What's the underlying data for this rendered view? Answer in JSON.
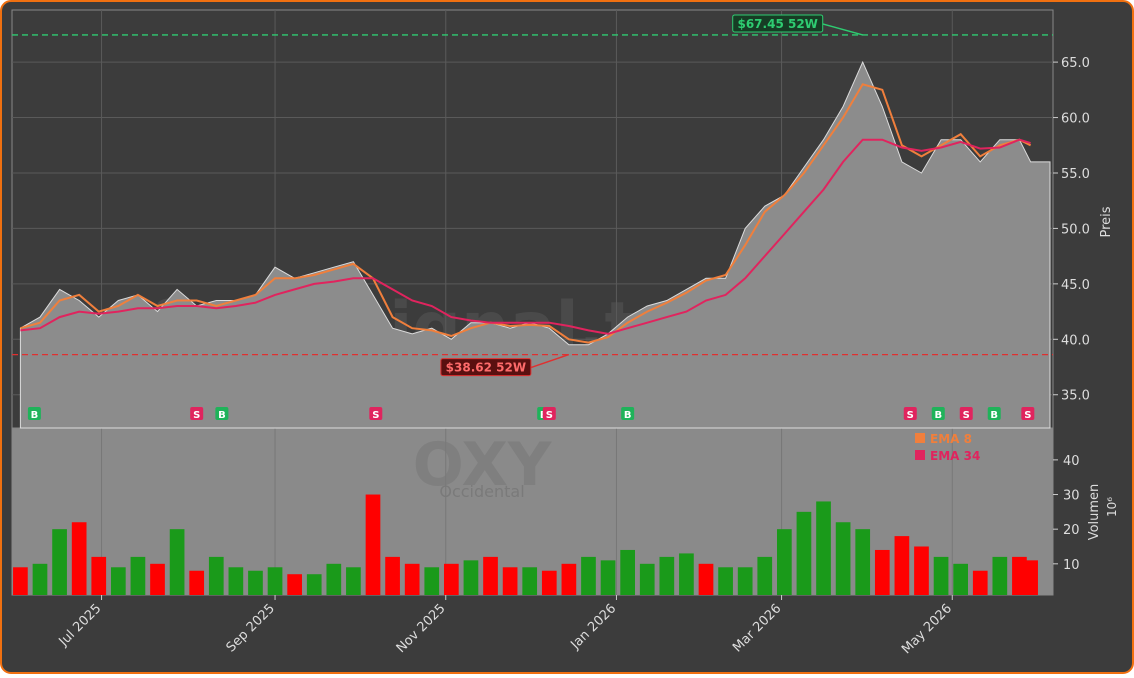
{
  "chart_data": {
    "type": "area",
    "ylabel": "Preis",
    "x": [
      -29,
      -22,
      -15,
      -8,
      -1,
      6,
      13,
      20,
      27,
      34,
      41,
      48,
      55,
      62,
      69,
      76,
      83,
      90,
      97,
      104,
      111,
      118,
      125,
      132,
      139,
      146,
      153,
      160,
      167,
      174,
      181,
      188,
      195,
      202,
      209,
      216,
      223,
      230,
      237,
      244,
      251,
      258,
      265,
      272,
      279,
      286,
      293,
      300,
      307,
      314,
      321,
      328,
      332
    ],
    "xlim": [
      -32,
      340
    ],
    "xticks": [
      {
        "value": 0,
        "label": "Jul 2025"
      },
      {
        "value": 62,
        "label": "Sep 2025"
      },
      {
        "value": 123,
        "label": "Nov 2025"
      },
      {
        "value": 184,
        "label": "Jan 2026"
      },
      {
        "value": 243,
        "label": "Mar 2026"
      },
      {
        "value": 304,
        "label": "May 2026"
      }
    ],
    "ylim": [
      32.0,
      69.7
    ],
    "yticks": [
      {
        "value": 35,
        "label": "35.0"
      },
      {
        "value": 40,
        "label": "40.0"
      },
      {
        "value": 45,
        "label": "45.0"
      },
      {
        "value": 50,
        "label": "50.0"
      },
      {
        "value": 55,
        "label": "55.0"
      },
      {
        "value": 60,
        "label": "60.0"
      },
      {
        "value": 65,
        "label": "65.0"
      }
    ],
    "grid": true,
    "series": [
      {
        "color": "#8c8c8c",
        "values": [
          41,
          42,
          44.5,
          43.5,
          42,
          43.5,
          44,
          42.5,
          44.5,
          43,
          43.5,
          43.5,
          44,
          46.5,
          45.5,
          46,
          46.5,
          47,
          44,
          41,
          40.5,
          41,
          40,
          41.5,
          41.5,
          41,
          41.5,
          41,
          39.5,
          39.5,
          40.5,
          42,
          43,
          43.5,
          44.5,
          45.5,
          45.5,
          50,
          52,
          53,
          55.5,
          58,
          61,
          65,
          61,
          56,
          55,
          58,
          58,
          56,
          58,
          58,
          56
        ]
      },
      {
        "name": "EMA 8",
        "color": "#f07f3c",
        "values": [
          41,
          41.5,
          43.5,
          44,
          42.5,
          43,
          44,
          43,
          43.5,
          43.5,
          43,
          43.5,
          44,
          45.5,
          45.5,
          45.8,
          46.3,
          46.8,
          45.5,
          42,
          41,
          40.8,
          40.3,
          41,
          41.5,
          41.2,
          41.3,
          41.2,
          40,
          39.7,
          40.2,
          41.5,
          42.5,
          43.3,
          44.2,
          45.3,
          45.8,
          48.5,
          51.5,
          53,
          55,
          57.5,
          60,
          63,
          62.5,
          57.5,
          56.5,
          57.5,
          58.5,
          56.5,
          57.5,
          58,
          57.5
        ]
      },
      {
        "name": "EMA 34",
        "color": "#e0245e",
        "values": [
          40.8,
          41,
          42,
          42.5,
          42.3,
          42.5,
          42.8,
          42.8,
          43,
          43,
          42.8,
          43,
          43.3,
          44,
          44.5,
          45,
          45.2,
          45.5,
          45.5,
          44.5,
          43.5,
          43,
          42,
          41.7,
          41.5,
          41.5,
          41.5,
          41.5,
          41.2,
          40.8,
          40.5,
          41,
          41.5,
          42,
          42.5,
          43.5,
          44,
          45.5,
          47.5,
          49.5,
          51.5,
          53.5,
          56,
          58,
          58,
          57.3,
          57,
          57.3,
          57.8,
          57.2,
          57.3,
          58,
          57.7
        ]
      }
    ],
    "reference_lines": [
      {
        "value": 67.45,
        "label": "$67.45 52W",
        "x": 272,
        "color": "#2ecc71"
      },
      {
        "value": 38.62,
        "label": "$38.62 52W",
        "x": 167,
        "color": "#e03030"
      }
    ],
    "signals": [
      {
        "x": -24,
        "label": "B"
      },
      {
        "x": 34,
        "label": "S"
      },
      {
        "x": 43,
        "label": "B"
      },
      {
        "x": 98,
        "label": "S"
      },
      {
        "x": 158,
        "label": "B"
      },
      {
        "x": 160,
        "label": "S"
      },
      {
        "x": 188,
        "label": "B"
      },
      {
        "x": 289,
        "label": "S"
      },
      {
        "x": 299,
        "label": "B"
      },
      {
        "x": 309,
        "label": "S"
      },
      {
        "x": 319,
        "label": "B"
      },
      {
        "x": 331,
        "label": "S"
      }
    ],
    "signal_colors": {
      "B": "#1fb35a",
      "S": "#e0245e"
    },
    "volume": {
      "ylabel": "Volumen",
      "unit": "10⁶",
      "ylim": [
        1,
        49.2
      ],
      "yticks": [
        10,
        20,
        30,
        40
      ],
      "values": [
        9,
        10,
        20,
        22,
        12,
        9,
        12,
        10,
        20,
        8,
        12,
        9,
        8,
        9,
        7,
        7,
        10,
        9,
        30,
        12,
        10,
        9,
        10,
        11,
        12,
        9,
        9,
        8,
        10,
        12,
        11,
        14,
        10,
        12,
        13,
        10,
        9,
        9,
        12,
        20,
        25,
        28,
        22,
        20,
        14,
        18,
        15,
        12,
        10,
        8,
        12,
        12,
        11
      ],
      "colors": [
        "#ff0000",
        "#1a9a1a",
        "#1a9a1a",
        "#ff0000",
        "#ff0000",
        "#1a9a1a",
        "#1a9a1a",
        "#ff0000",
        "#1a9a1a",
        "#ff0000",
        "#1a9a1a",
        "#1a9a1a",
        "#1a9a1a",
        "#1a9a1a",
        "#ff0000",
        "#1a9a1a",
        "#1a9a1a",
        "#1a9a1a",
        "#ff0000",
        "#ff0000",
        "#ff0000",
        "#1a9a1a",
        "#ff0000",
        "#1a9a1a",
        "#ff0000",
        "#ff0000",
        "#1a9a1a",
        "#ff0000",
        "#ff0000",
        "#1a9a1a",
        "#1a9a1a",
        "#1a9a1a",
        "#1a9a1a",
        "#1a9a1a",
        "#1a9a1a",
        "#ff0000",
        "#1a9a1a",
        "#1a9a1a",
        "#1a9a1a",
        "#1a9a1a",
        "#1a9a1a",
        "#1a9a1a",
        "#1a9a1a",
        "#1a9a1a",
        "#ff0000",
        "#ff0000",
        "#ff0000",
        "#1a9a1a",
        "#1a9a1a",
        "#ff0000",
        "#1a9a1a",
        "#ff0000",
        "#ff0000"
      ]
    },
    "watermark": "forexsignal.trade",
    "ticker": "OXY",
    "company": "Occidental"
  }
}
